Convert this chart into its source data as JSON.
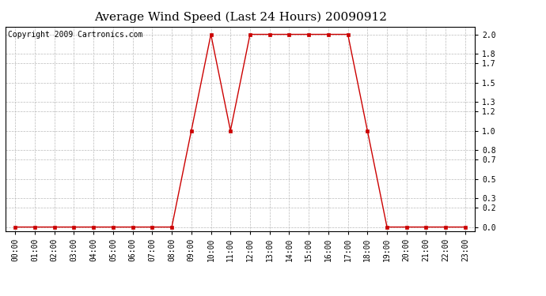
{
  "title": "Average Wind Speed (Last 24 Hours) 20090912",
  "copyright": "Copyright 2009 Cartronics.com",
  "x_labels": [
    "00:00",
    "01:00",
    "02:00",
    "03:00",
    "04:00",
    "05:00",
    "06:00",
    "07:00",
    "08:00",
    "09:00",
    "10:00",
    "11:00",
    "12:00",
    "13:00",
    "14:00",
    "15:00",
    "16:00",
    "17:00",
    "18:00",
    "19:00",
    "20:00",
    "21:00",
    "22:00",
    "23:00"
  ],
  "y_values": [
    0.0,
    0.0,
    0.0,
    0.0,
    0.0,
    0.0,
    0.0,
    0.0,
    0.0,
    1.0,
    2.0,
    1.0,
    2.0,
    2.0,
    2.0,
    2.0,
    2.0,
    2.0,
    1.0,
    0.0,
    0.0,
    0.0,
    0.0,
    0.0
  ],
  "line_color": "#cc0000",
  "marker": "s",
  "marker_size": 3,
  "marker_color": "#cc0000",
  "background_color": "#ffffff",
  "plot_bg_color": "#ffffff",
  "grid_color": "#bbbbbb",
  "grid_style": "--",
  "y_ticks": [
    0.0,
    0.2,
    0.3,
    0.5,
    0.7,
    0.8,
    1.0,
    1.2,
    1.3,
    1.5,
    1.7,
    1.8,
    2.0
  ],
  "ylim": [
    -0.04,
    2.08
  ],
  "title_fontsize": 11,
  "tick_fontsize": 7,
  "copyright_fontsize": 7
}
